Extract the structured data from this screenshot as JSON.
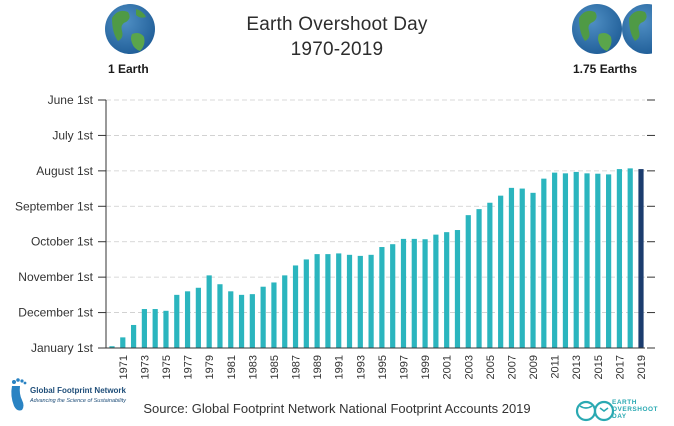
{
  "chart_data": {
    "type": "bar",
    "title": "Earth Overshoot Day",
    "subtitle": "1970-2019",
    "source": "Source: Global Footprint Network National Footprint Accounts 2019",
    "left_label": "1 Earth",
    "right_label": "1.75 Earths",
    "y_tick_labels": [
      "June 1st",
      "July 1st",
      "August 1st",
      "September 1st",
      "October 1st",
      "November 1st",
      "December 1st",
      "January 1st"
    ],
    "y_axis": {
      "min_month": 0,
      "max_month": 7,
      "note_units": "months before January 1st of following year"
    },
    "x_tick_labels": [
      "1971",
      "1973",
      "1975",
      "1977",
      "1979",
      "1981",
      "1983",
      "1985",
      "1987",
      "1989",
      "1991",
      "1993",
      "1995",
      "1997",
      "1999",
      "2001",
      "2003",
      "2005",
      "2007",
      "2009",
      "2011",
      "2013",
      "2015",
      "2017",
      "2019"
    ],
    "categories": [
      "1970",
      "1971",
      "1972",
      "1973",
      "1974",
      "1975",
      "1976",
      "1977",
      "1978",
      "1979",
      "1980",
      "1981",
      "1982",
      "1983",
      "1984",
      "1985",
      "1986",
      "1987",
      "1988",
      "1989",
      "1990",
      "1991",
      "1992",
      "1993",
      "1994",
      "1995",
      "1996",
      "1997",
      "1998",
      "1999",
      "2000",
      "2001",
      "2002",
      "2003",
      "2004",
      "2005",
      "2006",
      "2007",
      "2008",
      "2009",
      "2010",
      "2011",
      "2012",
      "2013",
      "2014",
      "2015",
      "2016",
      "2017",
      "2018",
      "2019"
    ],
    "values_months_before_jan1": [
      0.05,
      0.3,
      0.65,
      1.1,
      1.1,
      1.05,
      1.5,
      1.6,
      1.7,
      2.05,
      1.8,
      1.6,
      1.5,
      1.52,
      1.73,
      1.85,
      2.05,
      2.33,
      2.5,
      2.65,
      2.65,
      2.67,
      2.63,
      2.6,
      2.63,
      2.85,
      2.93,
      3.08,
      3.08,
      3.07,
      3.2,
      3.27,
      3.33,
      3.75,
      3.92,
      4.1,
      4.3,
      4.52,
      4.5,
      4.38,
      4.78,
      4.95,
      4.93,
      4.97,
      4.93,
      4.92,
      4.9,
      5.05,
      5.07,
      5.05
    ],
    "colors": {
      "bar": "#2bb5be",
      "highlight_bar": "#1b3c6e",
      "axis": "#333333",
      "grid": "#cccccc"
    }
  },
  "footer": {
    "gfn_name": "Global Footprint Network",
    "gfn_tagline": "Advancing the Science of Sustainability",
    "eo_line1": "EARTH",
    "eo_line2": "OVERSHOOT",
    "eo_line3": "DAY"
  }
}
